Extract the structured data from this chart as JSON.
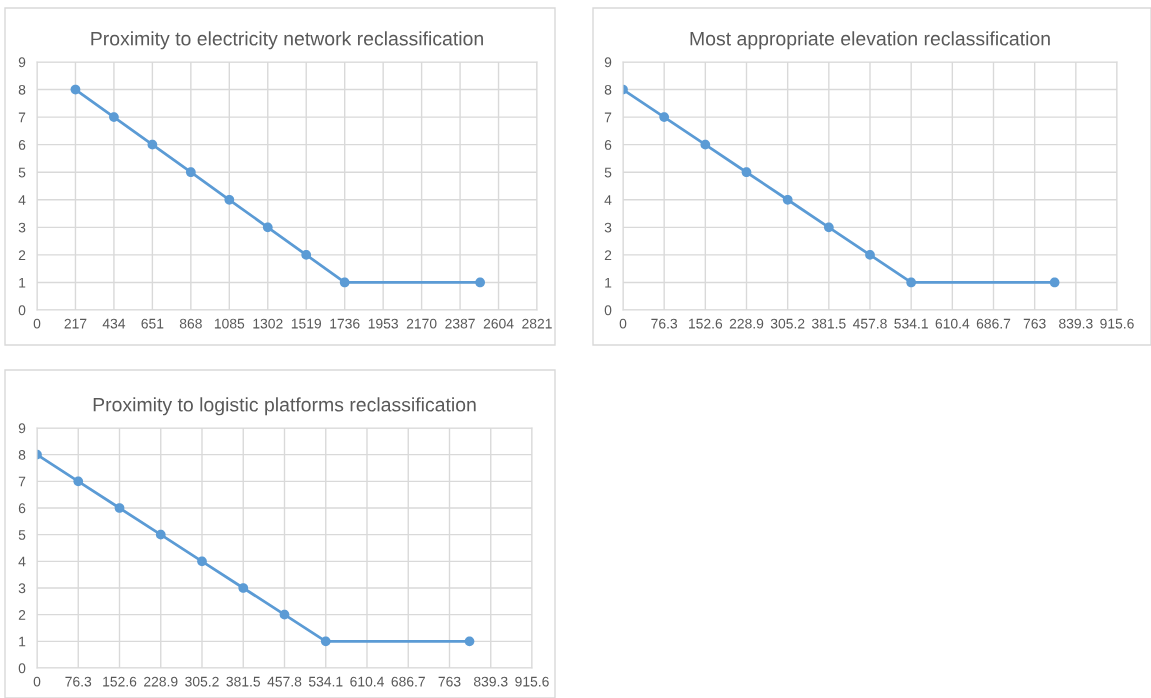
{
  "chart_data": [
    {
      "type": "line",
      "title": "Proximity to electricity network reclassification",
      "x": [
        217,
        434,
        651,
        868,
        1085,
        1302,
        1519,
        1736,
        2500
      ],
      "series": [
        {
          "color": "#5b9bd5",
          "values": [
            8,
            7,
            6,
            5,
            4,
            3,
            2,
            1,
            1
          ]
        }
      ],
      "xlim": [
        0,
        2821
      ],
      "xticks": [
        0,
        217,
        434,
        651,
        868,
        1085,
        1302,
        1519,
        1736,
        1953,
        2170,
        2387,
        2604,
        2821
      ],
      "ylim": [
        0,
        9
      ],
      "yticks": [
        0,
        1,
        2,
        3,
        4,
        5,
        6,
        7,
        8,
        9
      ],
      "grid": true,
      "marker": "circle",
      "line_style": "solid"
    },
    {
      "type": "line",
      "title": "Most appropriate elevation reclassification",
      "x": [
        0,
        76.3,
        152.6,
        228.9,
        305.2,
        381.5,
        457.8,
        534.1,
        800
      ],
      "series": [
        {
          "color": "#5b9bd5",
          "values": [
            8,
            7,
            6,
            5,
            4,
            3,
            2,
            1,
            1
          ]
        }
      ],
      "xlim": [
        0,
        915.6
      ],
      "xticks": [
        0,
        76.3,
        152.6,
        228.9,
        305.2,
        381.5,
        457.8,
        534.1,
        610.4,
        686.7,
        763,
        839.3,
        915.6
      ],
      "ylim": [
        0,
        9
      ],
      "yticks": [
        0,
        1,
        2,
        3,
        4,
        5,
        6,
        7,
        8,
        9
      ],
      "grid": true,
      "marker": "circle",
      "line_style": "solid"
    },
    {
      "type": "line",
      "title": "Proximity to logistic platforms reclassification",
      "x": [
        0,
        76.3,
        152.6,
        228.9,
        305.2,
        381.5,
        457.8,
        534.1,
        800
      ],
      "series": [
        {
          "color": "#5b9bd5",
          "values": [
            8,
            7,
            6,
            5,
            4,
            3,
            2,
            1,
            1
          ]
        }
      ],
      "xlim": [
        0,
        915.6
      ],
      "xticks": [
        0,
        76.3,
        152.6,
        228.9,
        305.2,
        381.5,
        457.8,
        534.1,
        610.4,
        686.7,
        763,
        839.3,
        915.6
      ],
      "ylim": [
        0,
        9
      ],
      "yticks": [
        0,
        1,
        2,
        3,
        4,
        5,
        6,
        7,
        8,
        9
      ],
      "grid": true,
      "marker": "circle",
      "line_style": "solid"
    }
  ]
}
